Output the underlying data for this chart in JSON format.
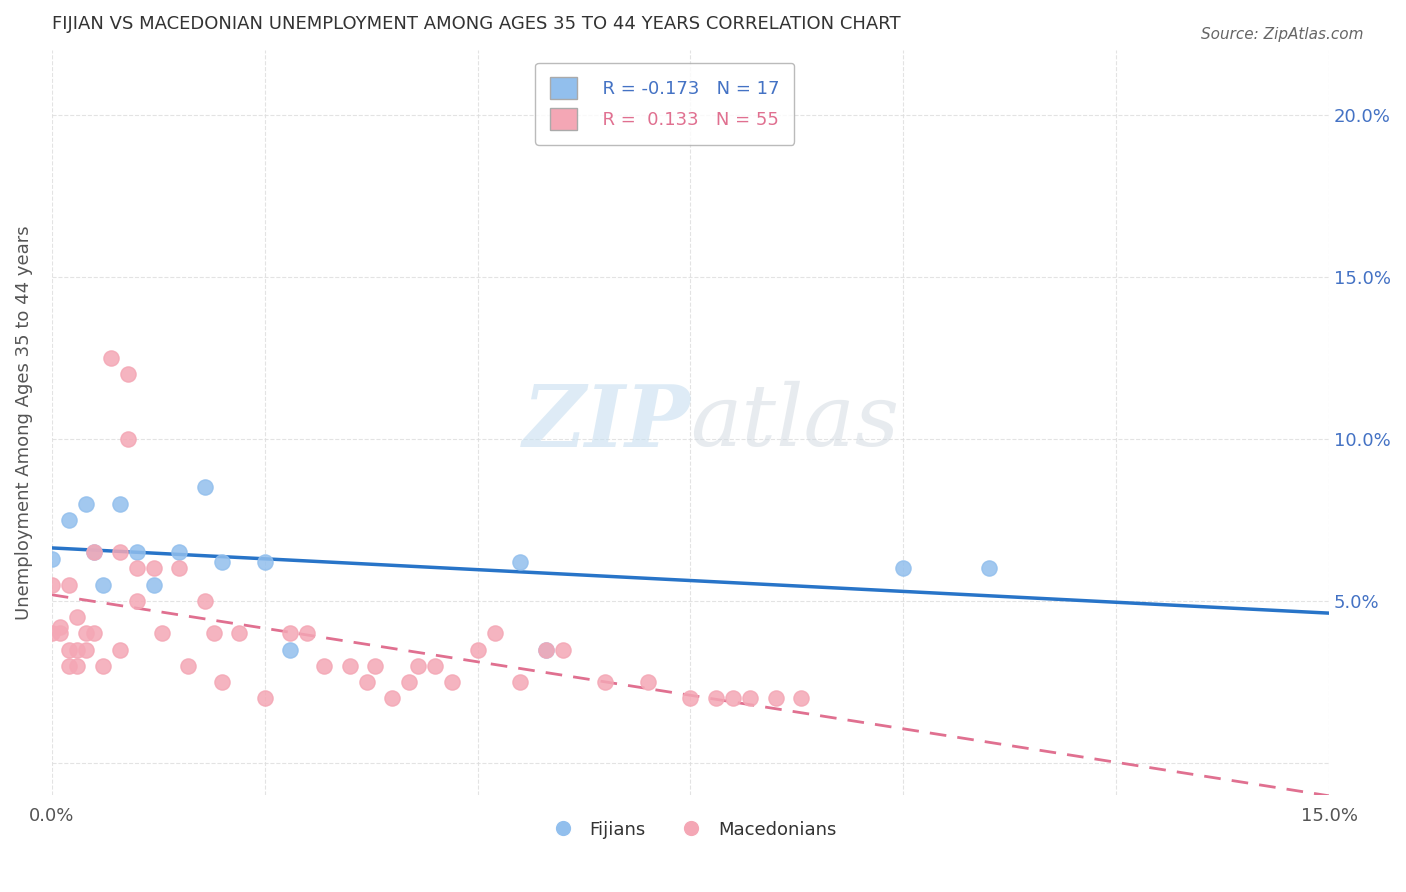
{
  "title": "FIJIAN VS MACEDONIAN UNEMPLOYMENT AMONG AGES 35 TO 44 YEARS CORRELATION CHART",
  "source": "Source: ZipAtlas.com",
  "ylabel_label": "Unemployment Among Ages 35 to 44 years",
  "xlim": [
    0.0,
    0.15
  ],
  "ylim": [
    -0.01,
    0.22
  ],
  "fijian_R": -0.173,
  "fijian_N": 17,
  "macedonian_R": 0.133,
  "macedonian_N": 55,
  "fijian_color": "#92BFED",
  "macedonian_color": "#F4A7B5",
  "fijian_line_color": "#2874C8",
  "macedonian_line_color": "#E07090",
  "watermark_zip": "ZIP",
  "watermark_atlas": "atlas",
  "fijian_x": [
    0.0,
    0.002,
    0.004,
    0.005,
    0.006,
    0.008,
    0.01,
    0.012,
    0.015,
    0.018,
    0.02,
    0.025,
    0.028,
    0.055,
    0.058,
    0.1,
    0.11
  ],
  "fijian_y": [
    0.063,
    0.075,
    0.08,
    0.065,
    0.055,
    0.08,
    0.065,
    0.055,
    0.065,
    0.085,
    0.062,
    0.062,
    0.035,
    0.062,
    0.035,
    0.06,
    0.06
  ],
  "macedonian_x": [
    0.0,
    0.0,
    0.001,
    0.001,
    0.002,
    0.002,
    0.002,
    0.003,
    0.003,
    0.003,
    0.004,
    0.004,
    0.005,
    0.005,
    0.006,
    0.007,
    0.008,
    0.008,
    0.009,
    0.009,
    0.01,
    0.01,
    0.012,
    0.013,
    0.015,
    0.016,
    0.018,
    0.019,
    0.02,
    0.022,
    0.025,
    0.028,
    0.03,
    0.032,
    0.035,
    0.037,
    0.038,
    0.04,
    0.042,
    0.043,
    0.045,
    0.047,
    0.05,
    0.052,
    0.055,
    0.058,
    0.06,
    0.065,
    0.07,
    0.075,
    0.078,
    0.08,
    0.082,
    0.085,
    0.088
  ],
  "macedonian_y": [
    0.055,
    0.04,
    0.04,
    0.042,
    0.035,
    0.03,
    0.055,
    0.03,
    0.035,
    0.045,
    0.035,
    0.04,
    0.04,
    0.065,
    0.03,
    0.125,
    0.065,
    0.035,
    0.12,
    0.1,
    0.05,
    0.06,
    0.06,
    0.04,
    0.06,
    0.03,
    0.05,
    0.04,
    0.025,
    0.04,
    0.02,
    0.04,
    0.04,
    0.03,
    0.03,
    0.025,
    0.03,
    0.02,
    0.025,
    0.03,
    0.03,
    0.025,
    0.035,
    0.04,
    0.025,
    0.035,
    0.035,
    0.025,
    0.025,
    0.02,
    0.02,
    0.02,
    0.02,
    0.02,
    0.02
  ]
}
